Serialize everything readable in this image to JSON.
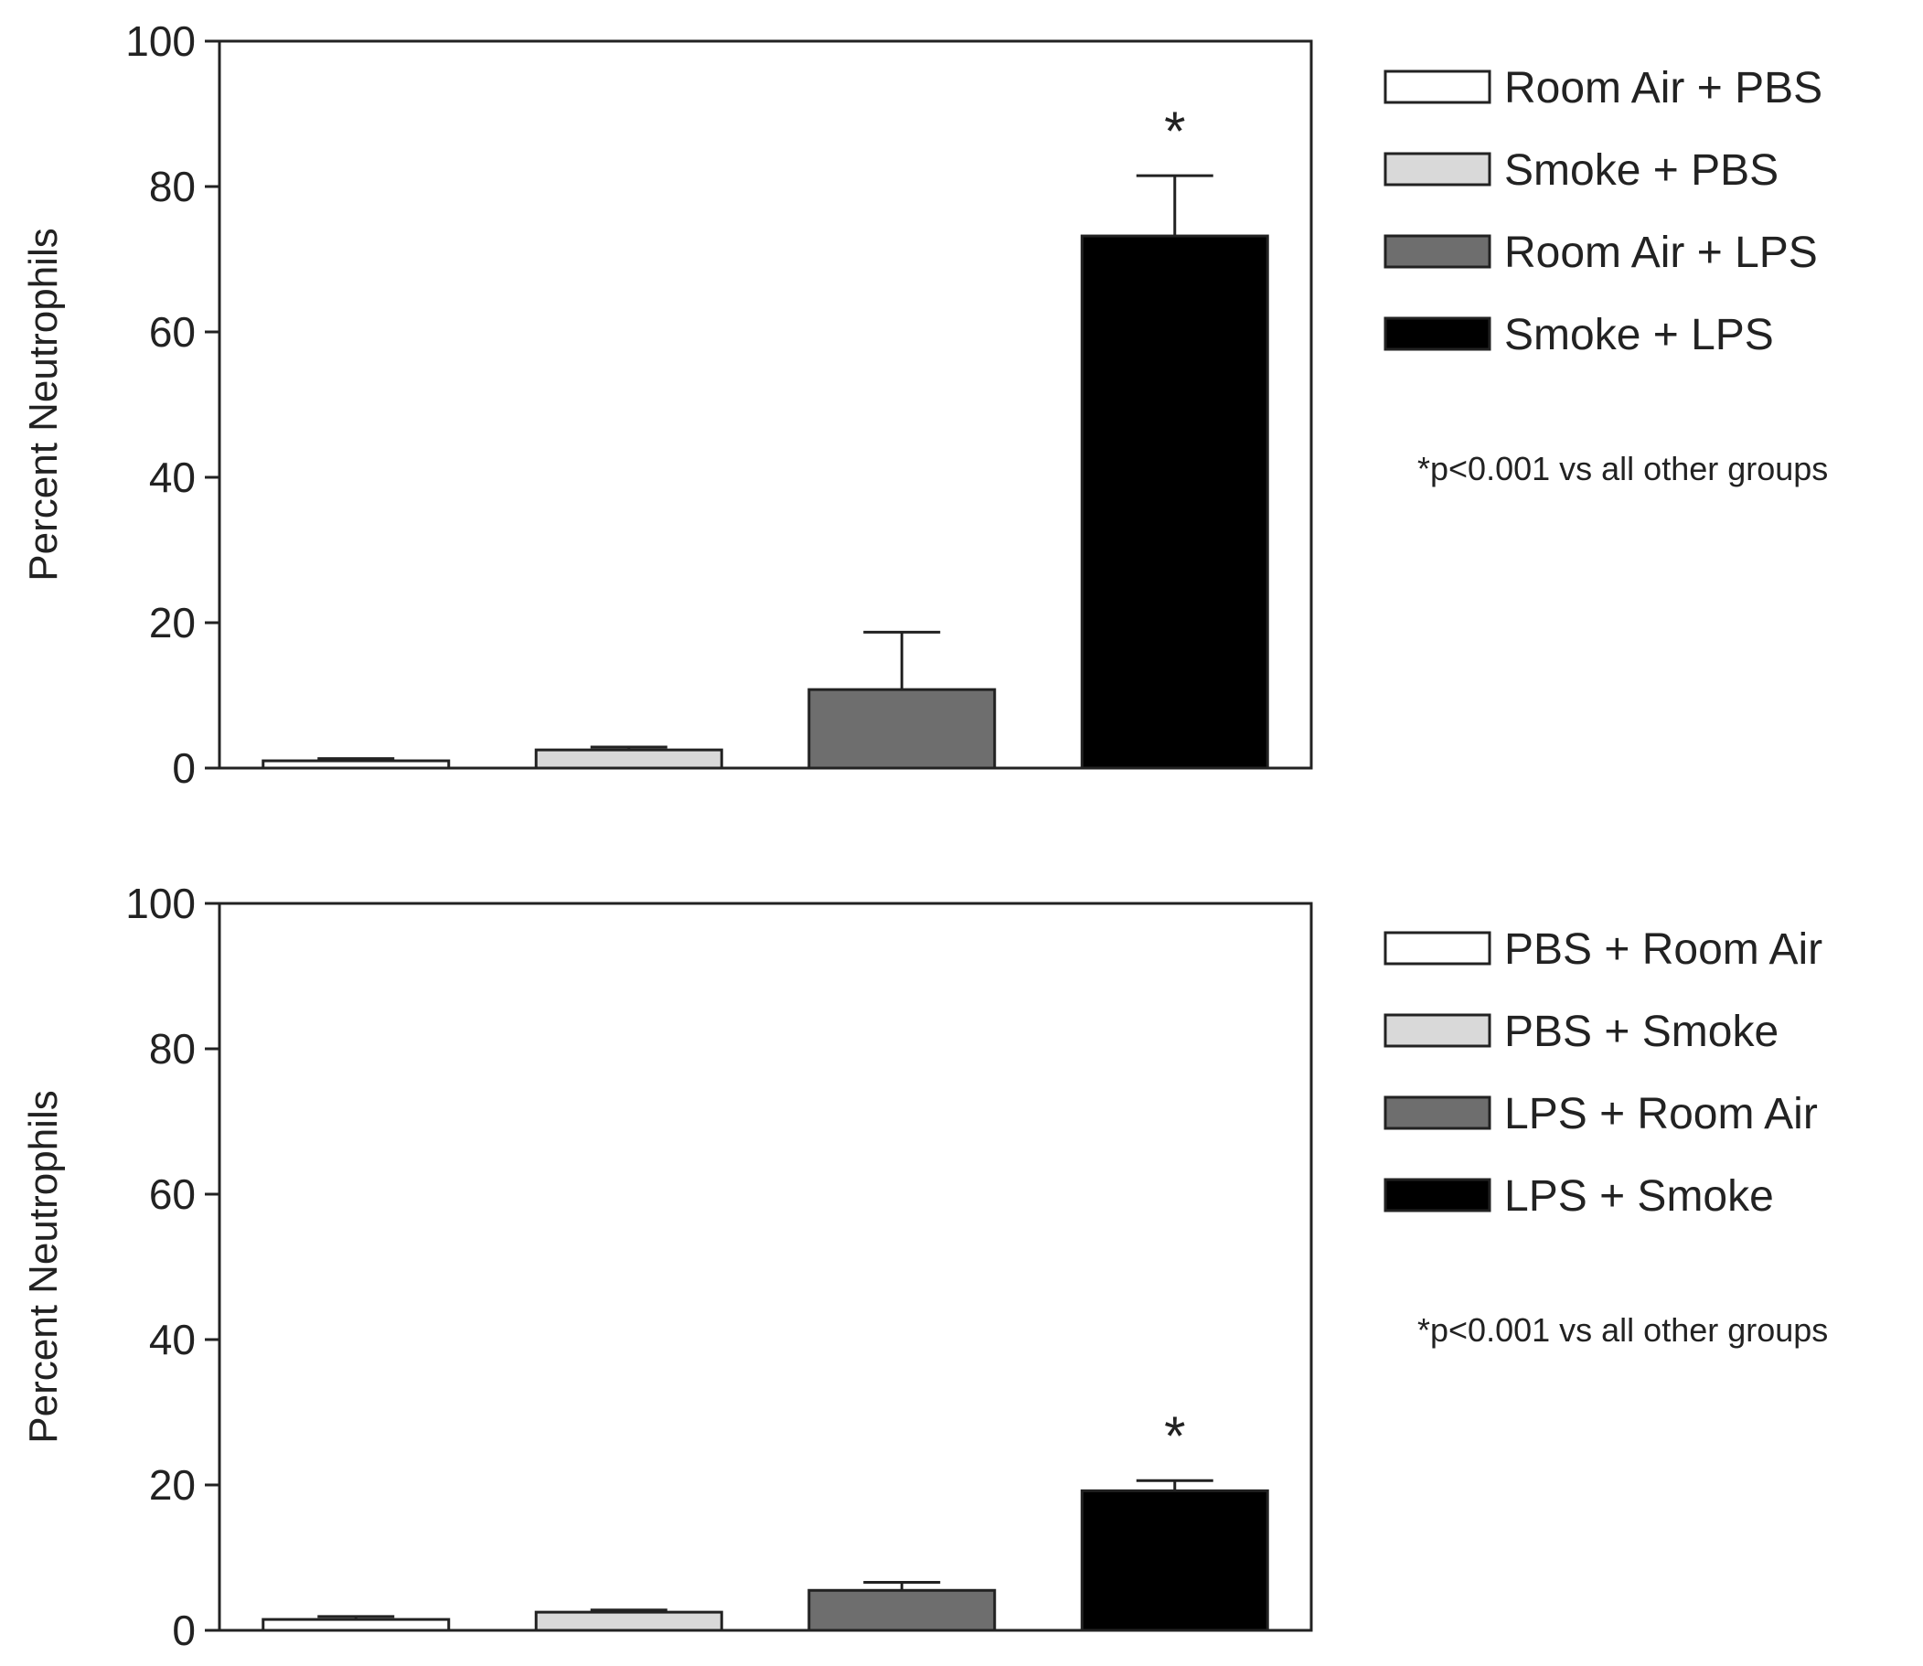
{
  "chart_data": [
    {
      "type": "bar",
      "ylabel": "Percent Neutrophils",
      "ylim": [
        0,
        100
      ],
      "yticks": [
        0,
        20,
        40,
        60,
        80,
        100
      ],
      "categories": [
        "Room Air + PBS",
        "Smoke + PBS",
        "Room Air + LPS",
        "Smoke + LPS"
      ],
      "values": [
        1,
        2.5,
        10.8,
        73.2
      ],
      "errors": [
        0.3,
        0.4,
        7.9,
        8.3
      ],
      "colors": [
        "#ffffff",
        "#d9d9d9",
        "#6e6e6e",
        "#000000"
      ],
      "significance": [
        "",
        "",
        "",
        "*"
      ],
      "legend": [
        "Room Air + PBS",
        "Smoke + PBS",
        "Room Air + LPS",
        "Smoke + LPS"
      ],
      "legend_position": "right",
      "note": "*p<0.001 vs all other groups",
      "grid": false
    },
    {
      "type": "bar",
      "ylabel": "Percent Neutrophils",
      "ylim": [
        0,
        100
      ],
      "yticks": [
        0,
        20,
        40,
        60,
        80,
        100
      ],
      "categories": [
        "PBS + Room Air",
        "PBS + Smoke",
        "LPS + Room Air",
        "LPS + Smoke"
      ],
      "values": [
        1.5,
        2.5,
        5.5,
        19.2
      ],
      "errors": [
        0.4,
        0.3,
        1.1,
        1.4
      ],
      "colors": [
        "#ffffff",
        "#d9d9d9",
        "#6e6e6e",
        "#000000"
      ],
      "significance": [
        "",
        "",
        "",
        "*"
      ],
      "legend": [
        "PBS + Room Air",
        "PBS + Smoke",
        "LPS + Room Air",
        "LPS + Smoke"
      ],
      "legend_position": "right",
      "note": "*p<0.001 vs all other groups",
      "grid": false
    }
  ]
}
